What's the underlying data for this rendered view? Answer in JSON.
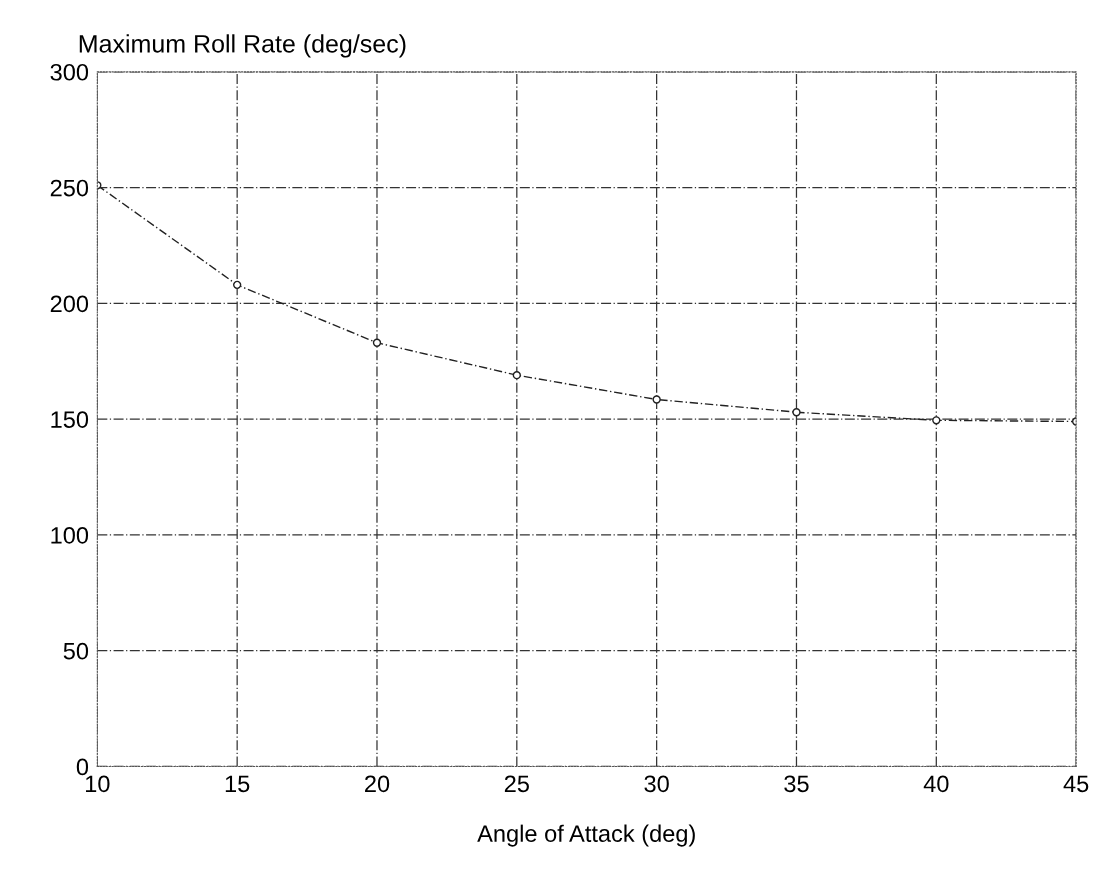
{
  "chart_data": {
    "type": "line",
    "title": "Maximum Roll Rate (deg/sec)",
    "xlabel": "Angle of Attack (deg)",
    "x": [
      10,
      15,
      20,
      25,
      30,
      35,
      40,
      45
    ],
    "series": [
      {
        "color": "#222222",
        "values": [
          251,
          208,
          183,
          169,
          158.5,
          153,
          149.5,
          149
        ]
      }
    ],
    "xlim": [
      10,
      45
    ],
    "xticks": [
      10,
      15,
      20,
      25,
      30,
      35,
      40,
      45
    ],
    "ylim": [
      0,
      300
    ],
    "yticks": [
      0,
      50,
      100,
      150,
      200,
      250,
      300
    ],
    "grid": true,
    "marker": "circle",
    "line_style": "dashed"
  }
}
